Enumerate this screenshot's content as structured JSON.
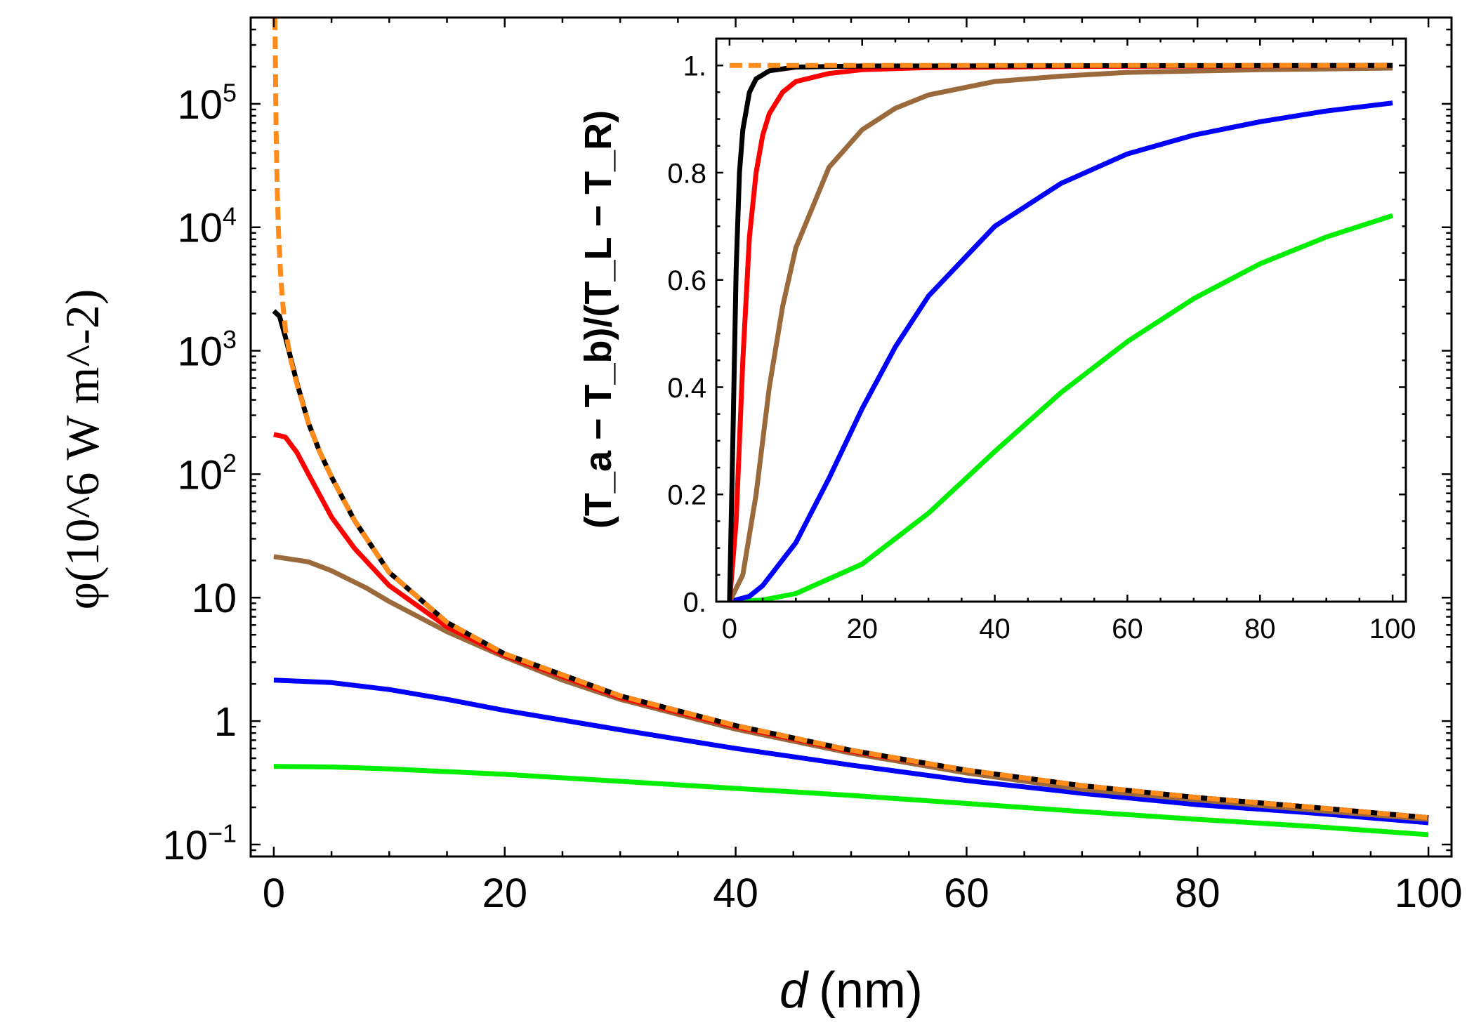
{
  "chart_data": [
    {
      "id": "main",
      "type": "line",
      "title": "",
      "xlabel": "d (nm)",
      "xlabel_var": "d",
      "xlabel_unit": "(nm)",
      "ylabel": "φ(10^6 W m^-2)",
      "yscale": "log",
      "xlim": [
        -2,
        102
      ],
      "ylim": [
        0.08,
        500000
      ],
      "grid": false,
      "legend": "none",
      "xticks": [
        {
          "value": 0,
          "label": "0"
        },
        {
          "value": 20,
          "label": "20"
        },
        {
          "value": 40,
          "label": "40"
        },
        {
          "value": 60,
          "label": "60"
        },
        {
          "value": 80,
          "label": "80"
        },
        {
          "value": 100,
          "label": "100"
        }
      ],
      "yticks": [
        {
          "value": 0.1,
          "base": "10",
          "exp": "−1"
        },
        {
          "value": 1,
          "base": "1",
          "exp": ""
        },
        {
          "value": 10,
          "base": "10",
          "exp": ""
        },
        {
          "value": 100,
          "base": "10",
          "exp": "2"
        },
        {
          "value": 1000,
          "base": "10",
          "exp": "3"
        },
        {
          "value": 10000,
          "base": "10",
          "exp": "4"
        },
        {
          "value": 100000,
          "base": "10",
          "exp": "5"
        }
      ],
      "series": [
        {
          "name": "green",
          "color": "#00ee00",
          "dash": "none",
          "x": [
            0,
            5,
            10,
            20,
            30,
            40,
            50,
            60,
            70,
            80,
            90,
            100
          ],
          "y": [
            0.43,
            0.425,
            0.41,
            0.37,
            0.325,
            0.285,
            0.25,
            0.215,
            0.185,
            0.16,
            0.14,
            0.12
          ]
        },
        {
          "name": "blue",
          "color": "#0000ff",
          "dash": "none",
          "x": [
            0,
            5,
            10,
            15,
            20,
            30,
            40,
            50,
            60,
            70,
            80,
            90,
            100
          ],
          "y": [
            2.15,
            2.05,
            1.8,
            1.5,
            1.22,
            0.85,
            0.6,
            0.44,
            0.33,
            0.26,
            0.21,
            0.18,
            0.15
          ]
        },
        {
          "name": "brown",
          "color": "#9b6a3c",
          "dash": "none",
          "x": [
            0,
            3,
            5,
            8,
            10,
            15,
            20,
            25,
            30,
            40,
            50,
            60,
            70,
            80,
            90,
            100
          ],
          "y": [
            21.5,
            19.5,
            16.5,
            12,
            9.3,
            5.3,
            3.3,
            2.15,
            1.5,
            0.86,
            0.55,
            0.38,
            0.28,
            0.23,
            0.19,
            0.16
          ]
        },
        {
          "name": "red",
          "color": "#ff0000",
          "dash": "none",
          "x": [
            0,
            1,
            2,
            3,
            5,
            7,
            10,
            15,
            20,
            30,
            40,
            50,
            60,
            70,
            80,
            90,
            100
          ],
          "y": [
            210,
            200,
            150,
            100,
            45,
            25,
            12.5,
            5.8,
            3.4,
            1.55,
            0.9,
            0.57,
            0.4,
            0.3,
            0.24,
            0.2,
            0.165
          ]
        },
        {
          "name": "black",
          "color": "#000000",
          "dash": "none",
          "x": [
            0,
            0.5,
            1,
            1.5,
            2,
            3,
            4,
            5,
            7,
            10,
            15,
            20,
            30,
            40,
            50,
            60,
            70,
            80,
            90,
            100
          ],
          "y": [
            2100,
            1900,
            1300,
            850,
            550,
            260,
            150,
            95,
            42,
            16,
            6.3,
            3.5,
            1.6,
            0.92,
            0.58,
            0.4,
            0.3,
            0.24,
            0.2,
            0.165
          ]
        },
        {
          "name": "orange-dashed",
          "color": "#ff8c1a",
          "dash": "18,9",
          "x": [
            0.1,
            0.15,
            0.2,
            0.3,
            0.4,
            0.6,
            0.8,
            1,
            1.5,
            2,
            3,
            4,
            5,
            7,
            10,
            15,
            20,
            30,
            40,
            50,
            60,
            70,
            80,
            90,
            100
          ],
          "y": [
            500000,
            160000,
            60000,
            20000,
            9500,
            3900,
            2300,
            1500,
            820,
            540,
            260,
            150,
            95,
            42,
            16,
            6.3,
            3.5,
            1.6,
            0.92,
            0.58,
            0.4,
            0.3,
            0.24,
            0.2,
            0.165
          ]
        }
      ]
    },
    {
      "id": "inset",
      "type": "line",
      "title": "",
      "xlabel": "",
      "ylabel": "(T_a − T_b)/(T_L − T_R)",
      "yscale": "linear",
      "xlim": [
        -2,
        102
      ],
      "ylim": [
        0,
        1.05
      ],
      "grid": false,
      "legend": "none",
      "xticks": [
        {
          "value": 0,
          "label": "0"
        },
        {
          "value": 20,
          "label": "20"
        },
        {
          "value": 40,
          "label": "40"
        },
        {
          "value": 60,
          "label": "60"
        },
        {
          "value": 80,
          "label": "80"
        },
        {
          "value": 100,
          "label": "100"
        }
      ],
      "yticks": [
        {
          "value": 0,
          "label": "0."
        },
        {
          "value": 0.2,
          "label": "0.2"
        },
        {
          "value": 0.4,
          "label": "0.4"
        },
        {
          "value": 0.6,
          "label": "0.6"
        },
        {
          "value": 0.8,
          "label": "0.8"
        },
        {
          "value": 1,
          "label": "1."
        }
      ],
      "series": [
        {
          "name": "green",
          "color": "#00ee00",
          "dash": "none",
          "x": [
            0,
            5,
            10,
            20,
            30,
            40,
            50,
            60,
            70,
            80,
            90,
            100
          ],
          "y": [
            0,
            0.003,
            0.015,
            0.07,
            0.165,
            0.28,
            0.39,
            0.485,
            0.565,
            0.63,
            0.68,
            0.72
          ]
        },
        {
          "name": "blue",
          "color": "#0000ff",
          "dash": "none",
          "x": [
            0,
            3,
            5,
            10,
            15,
            20,
            25,
            30,
            40,
            50,
            60,
            70,
            80,
            90,
            100
          ],
          "y": [
            0,
            0.01,
            0.03,
            0.11,
            0.23,
            0.36,
            0.475,
            0.57,
            0.7,
            0.78,
            0.835,
            0.87,
            0.895,
            0.915,
            0.93
          ]
        },
        {
          "name": "brown",
          "color": "#9b6a3c",
          "dash": "none",
          "x": [
            0,
            2,
            4,
            6,
            8,
            10,
            15,
            20,
            25,
            30,
            40,
            50,
            60,
            80,
            100
          ],
          "y": [
            0,
            0.05,
            0.2,
            0.4,
            0.55,
            0.66,
            0.81,
            0.88,
            0.92,
            0.945,
            0.97,
            0.98,
            0.987,
            0.992,
            0.995
          ]
        },
        {
          "name": "red",
          "color": "#ff0000",
          "dash": "none",
          "x": [
            0,
            1,
            2,
            3,
            4,
            5,
            6,
            8,
            10,
            15,
            20,
            30,
            50,
            100
          ],
          "y": [
            0,
            0.15,
            0.45,
            0.68,
            0.8,
            0.87,
            0.91,
            0.95,
            0.97,
            0.985,
            0.992,
            0.996,
            0.998,
            1.0
          ]
        },
        {
          "name": "black",
          "color": "#000000",
          "dash": "none",
          "x": [
            0,
            0.5,
            1,
            1.5,
            2,
            3,
            4,
            6,
            10,
            20,
            100
          ],
          "y": [
            0,
            0.3,
            0.62,
            0.8,
            0.88,
            0.95,
            0.975,
            0.99,
            0.997,
            0.999,
            1.0
          ]
        },
        {
          "name": "orange-dashed",
          "color": "#ff8c1a",
          "dash": "18,9",
          "x": [
            0,
            100
          ],
          "y": [
            1.0,
            1.0
          ]
        }
      ]
    }
  ]
}
